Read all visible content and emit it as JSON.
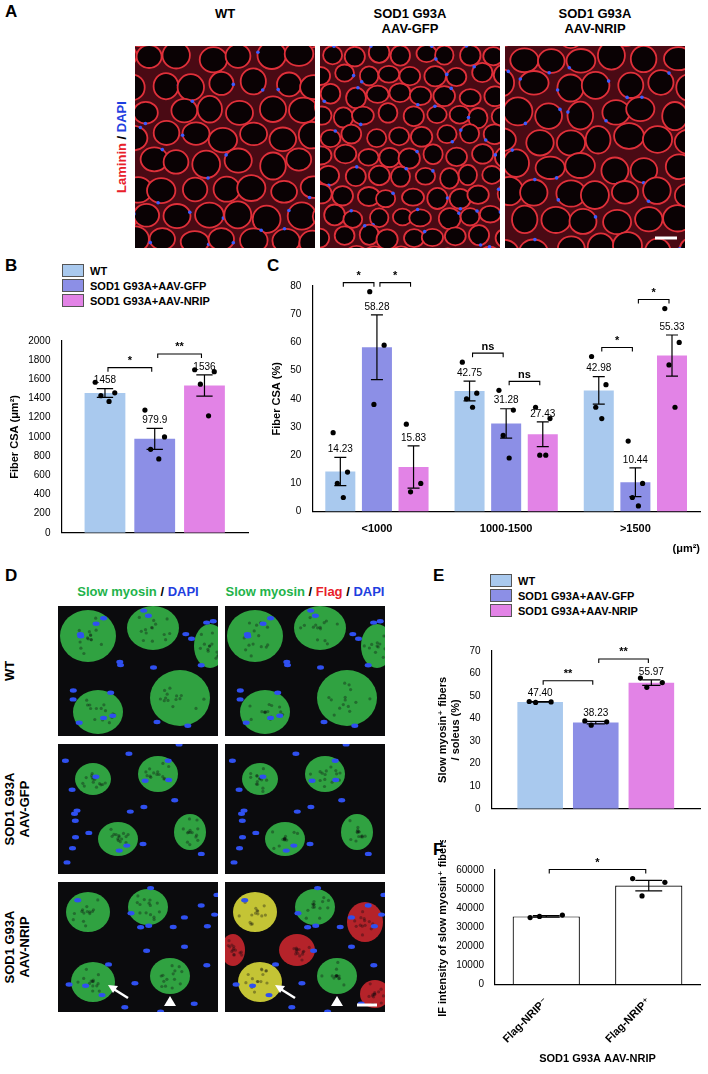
{
  "figure": {
    "panels": {
      "A": {
        "label": "A",
        "columns": [
          [
            "WT"
          ],
          [
            "SOD1 G93A",
            "AAV-GFP"
          ],
          [
            "SOD1 G93A",
            "AAV-NRIP"
          ]
        ],
        "stain": "Laminin / DAPI"
      },
      "D": {
        "label": "D",
        "rows": [
          [
            "WT"
          ],
          [
            "SOD1 G93A",
            "AAV-GFP"
          ],
          [
            "SOD1 G93A",
            "AAV-NRIP"
          ]
        ],
        "columns": [
          "Slow myosin / DAPI",
          "Slow myosin / Flag / DAPI"
        ]
      }
    },
    "stain_colors": {
      "Laminin": "#e8202a",
      "DAPI": "#1f3fe0",
      "Slow myosin": "#22b34a",
      "Flag": "#e8202a"
    }
  },
  "chart_data": [
    {
      "panel": "B",
      "type": "bar",
      "legend": "top",
      "data_labels": true,
      "grid": false,
      "y_label": "Fiber CSA (μm²)",
      "categories": [
        null
      ],
      "series": [
        {
          "name": "WT",
          "color": "#a9c9ee",
          "values": [
            1458
          ],
          "errors": [
            45
          ],
          "points": [
            [
              1570,
              1460,
              1430,
              1370
            ]
          ]
        },
        {
          "name": "SOD1 G93A+AAV-GFP",
          "color": "#8c8fe6",
          "values": [
            979.9
          ],
          "errors": [
            110
          ],
          "points": [
            [
              1280,
              1000,
              870,
              770
            ]
          ]
        },
        {
          "name": "SOD1 G93A+AAV-NRIP",
          "color": "#e283e6",
          "values": [
            1536
          ],
          "errors": [
            110
          ],
          "points": [
            [
              1700,
              1680,
              1550,
              1220
            ]
          ]
        }
      ],
      "ylim": [
        0,
        2000
      ],
      "yticks": [
        0,
        200,
        400,
        600,
        800,
        1000,
        1200,
        1400,
        1600,
        1800,
        2000
      ],
      "significance": [
        {
          "category": 0,
          "from": 0,
          "to": 1,
          "label": "*"
        },
        {
          "category": 0,
          "from": 1,
          "to": 2,
          "label": "**"
        }
      ]
    },
    {
      "panel": "C",
      "type": "bar",
      "data_labels": true,
      "grid": false,
      "y_label": "Fiber CSA (%)",
      "x_label": "(μm²)",
      "categories": [
        "<1000",
        "1000-1500",
        ">1500"
      ],
      "series": [
        {
          "color": "#a9c9ee",
          "values": [
            14.23,
            42.75,
            42.98
          ],
          "errors": [
            5,
            3.5,
            4.9
          ],
          "points": [
            [
              28,
              14,
              10,
              5
            ],
            [
              53,
              42,
              40,
              37
            ],
            [
              55,
              45,
              37,
              33
            ]
          ]
        },
        {
          "color": "#8c8fe6",
          "values": [
            58.28,
            31.28,
            10.44
          ],
          "errors": [
            11.5,
            5.2,
            5.1
          ],
          "points": [
            [
              78,
              59,
              38
            ],
            [
              43,
              36,
              27,
              19
            ],
            [
              25,
              10,
              5,
              2
            ]
          ]
        },
        {
          "color": "#e283e6",
          "values": [
            15.83,
            27.43,
            55.33
          ],
          "errors": [
            7.5,
            4.4,
            7.3
          ],
          "points": [
            [
              31,
              10,
              7
            ],
            [
              37,
              33,
              20,
              20
            ],
            [
              72,
              60,
              52,
              37
            ]
          ]
        }
      ],
      "ylim": [
        0,
        80
      ],
      "yticks": [
        0,
        10,
        20,
        30,
        40,
        50,
        60,
        70,
        80
      ],
      "significance": [
        {
          "category": 0,
          "from": 0,
          "to": 1,
          "label": "*"
        },
        {
          "category": 0,
          "from": 1,
          "to": 2,
          "label": "*"
        },
        {
          "category": 1,
          "from": 0,
          "to": 1,
          "label": "ns"
        },
        {
          "category": 1,
          "from": 1,
          "to": 2,
          "label": "ns"
        },
        {
          "category": 2,
          "from": 0,
          "to": 1,
          "label": "*"
        },
        {
          "category": 2,
          "from": 1,
          "to": 2,
          "label": "*"
        }
      ]
    },
    {
      "panel": "E",
      "type": "bar",
      "legend": "top",
      "data_labels": true,
      "grid": false,
      "y_label": [
        "Slow myosin⁺ fibers",
        "/ soleus (%)"
      ],
      "categories": [
        null
      ],
      "series": [
        {
          "name": "WT",
          "color": "#a9c9ee",
          "values": [
            47.4
          ],
          "value_labels": [
            "47.40"
          ],
          "errors": [
            0.12
          ],
          "points": [
            [
              47.6,
              47.4,
              47.2
            ]
          ]
        },
        {
          "name": "SOD1 G93A+AAV-GFP",
          "color": "#8c8fe6",
          "values": [
            38.23
          ],
          "value_labels": [
            "38.23"
          ],
          "errors": [
            0.58
          ],
          "points": [
            [
              39,
              38.6,
              37.1
            ]
          ]
        },
        {
          "name": "SOD1 G93A+AAV-NRIP",
          "color": "#e283e6",
          "values": [
            55.97
          ],
          "value_labels": [
            "55.97"
          ],
          "errors": [
            1.18
          ],
          "points": [
            [
              58,
              56,
              53.9
            ]
          ]
        }
      ],
      "ylim": [
        0,
        70
      ],
      "yticks": [
        0,
        10,
        20,
        30,
        40,
        50,
        60,
        70
      ],
      "significance": [
        {
          "category": 0,
          "from": 0,
          "to": 1,
          "label": "**"
        },
        {
          "category": 0,
          "from": 1,
          "to": 2,
          "label": "**"
        }
      ]
    },
    {
      "panel": "F",
      "type": "bar",
      "grid": false,
      "y_label": "IF intensity of slow myosin⁺ fibers",
      "x_label": "SOD1 G93A AAV-NRIP",
      "categories": [
        "Flag-NRIP⁻",
        "Flag-NRIP⁺"
      ],
      "color": "#ffffff",
      "values": [
        35630,
        51800
      ],
      "errors": [
        380,
        2800
      ],
      "points": [
        [
          35000,
          36300,
          35600
        ],
        [
          55500,
          53500,
          46400
        ]
      ],
      "ylim": [
        0,
        60000
      ],
      "yticks": [
        0,
        10000,
        20000,
        30000,
        40000,
        50000,
        60000
      ],
      "significance": [
        {
          "from": 0,
          "to": 1,
          "label": "*"
        }
      ]
    }
  ]
}
